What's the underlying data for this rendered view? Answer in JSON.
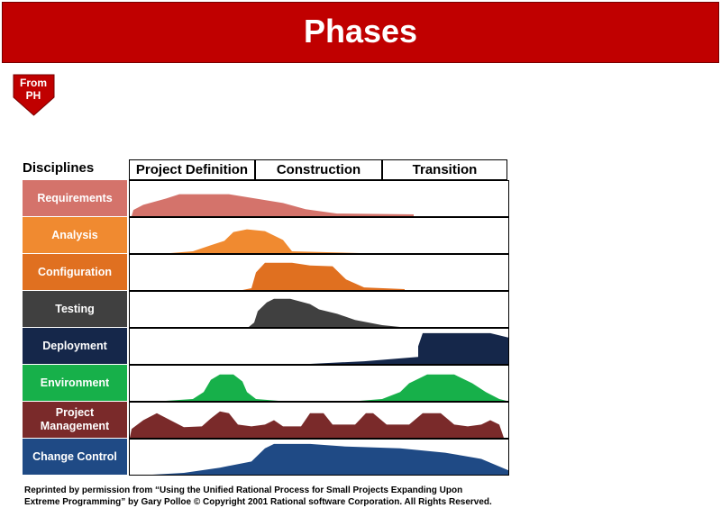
{
  "header": {
    "title": "Phases"
  },
  "nav_button": {
    "label_lines": [
      "From",
      "PH"
    ]
  },
  "table": {
    "corner": "Disciplines",
    "phases": [
      "Project Definition",
      "Construction",
      "Transition"
    ],
    "disciplines": [
      "Requirements",
      "Analysis",
      "Configuration",
      "Testing",
      "Deployment",
      "Environment",
      "Project Management",
      "Change Control"
    ]
  },
  "footer": {
    "lines": [
      "Reprinted by permission from “Using the Unified Rational Process for Small Projects Expanding Upon",
      "Extreme Programming” by Gary Polloe © Copyright 2001 Rational software Corporation.  All Rights Reserved."
    ]
  }
}
